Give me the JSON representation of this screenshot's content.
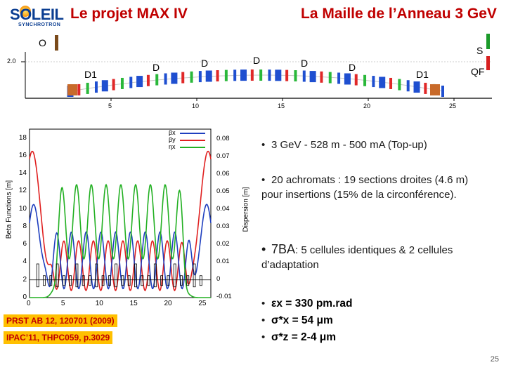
{
  "logo": {
    "word": "SOLEIL",
    "sub": "SYNCHROTRON"
  },
  "header": {
    "title_left": "Le projet MAX IV",
    "title_right": "La Maille de l’Anneau 3 GeV"
  },
  "lattice": {
    "labels": [
      "O",
      "D1",
      "D",
      "D",
      "D",
      "D",
      "D",
      "D1",
      "QF",
      "S"
    ],
    "y_tick": "2.0",
    "x_ticks": [
      "5",
      "10",
      "15",
      "20",
      "25"
    ]
  },
  "plot": {
    "left_axis_label": "Beta Functions [m]",
    "right_axis_label": "Dispersion [m]",
    "left_ticks": [
      "18",
      "16",
      "14",
      "12",
      "10",
      "8",
      "6",
      "4",
      "2",
      "0"
    ],
    "right_ticks": [
      "0.08",
      "0.07",
      "0.06",
      "0.05",
      "0.04",
      "0.03",
      "0.02",
      "0.01",
      "0",
      "-0.01"
    ],
    "x_ticks": [
      "0",
      "5",
      "10",
      "15",
      "20",
      "25"
    ],
    "legend": [
      "βx",
      "βy",
      "ηx"
    ],
    "colors": {
      "betax": "#1f3fbf",
      "betay": "#e02020",
      "eta": "#22b022"
    }
  },
  "refs": [
    "PRST AB 12, 120701 (2009)",
    "IPAC’11, THPC059, p.3029"
  ],
  "bullets": [
    {
      "text": "3 GeV - 528 m - 500 mA (Top-up)"
    },
    {
      "text": "20 achromats : 19 sections droites (4.6 m) pour insertions (15% de la circonférence)."
    },
    {
      "lead": "7BA",
      "text": ": 5 cellules identiques & 2 cellules d’adaptation"
    }
  ],
  "emittance": [
    {
      "sym": "εx",
      "text": " = 330 pm.rad"
    },
    {
      "sym": "σ*x",
      "text": " = 54 μm"
    },
    {
      "sym": "σ*z",
      "text": " = 2-4 μm"
    }
  ],
  "slide_number": "25"
}
